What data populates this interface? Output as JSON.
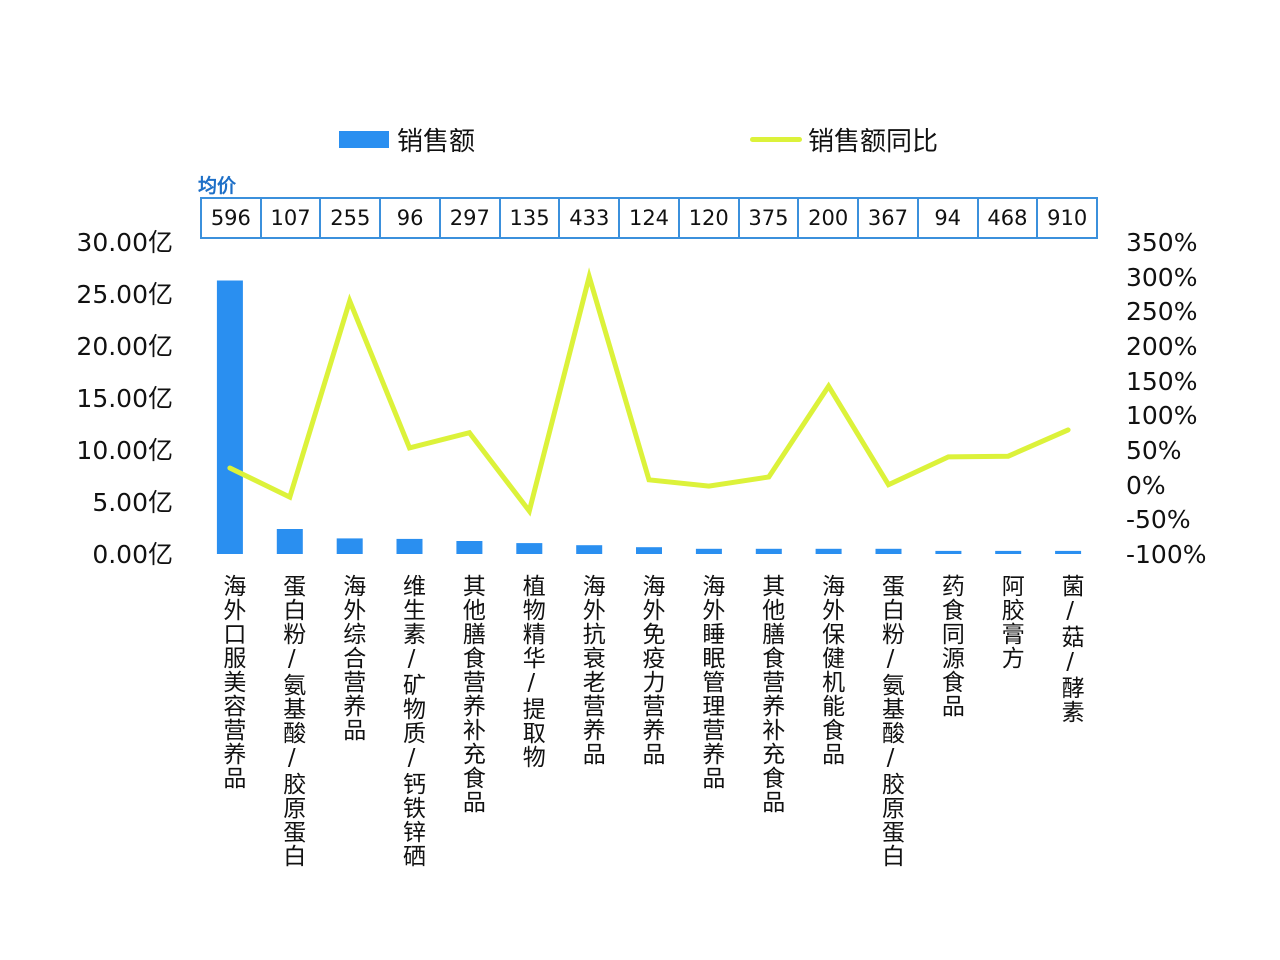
{
  "legend": {
    "bar_label": "销售额",
    "line_label": "销售额同比"
  },
  "avg_price": {
    "title": "均价",
    "values": [
      "596",
      "107",
      "255",
      "96",
      "297",
      "135",
      "433",
      "124",
      "120",
      "375",
      "200",
      "367",
      "94",
      "468",
      "910"
    ]
  },
  "colors": {
    "bar": "#2a8ff0",
    "line": "#dcf23a",
    "table_border": "#3b90dc",
    "table_title": "#1d6fc7"
  },
  "axes": {
    "left_ticks": [
      "30.00亿",
      "25.00亿",
      "20.00亿",
      "15.00亿",
      "10.00亿",
      "5.00亿",
      "0.00亿"
    ],
    "right_ticks": [
      "350%",
      "300%",
      "250%",
      "200%",
      "150%",
      "100%",
      "50%",
      "0%",
      "-50%",
      "-100%"
    ]
  },
  "chart_data": {
    "type": "bar+line",
    "title": "",
    "categories": [
      "海外口服美容营养品",
      "蛋白粉/氨基酸/胶原蛋白",
      "海外综合营养品",
      "维生素/矿物质/钙铁锌硒",
      "其他膳食营养补充食品",
      "植物精华/提取物",
      "海外抗衰老营养品",
      "海外免疫力营养品",
      "海外睡眠管理营养品",
      "其他膳食营养补充食品",
      "海外保健机能食品",
      "蛋白粉/氨基酸/胶原蛋白",
      "药食同源食品",
      "阿胶膏方",
      "菌/菇/酵素"
    ],
    "series": [
      {
        "name": "销售额",
        "type": "bar",
        "axis": "left",
        "unit": "亿",
        "values": [
          26.3,
          2.4,
          1.5,
          1.45,
          1.25,
          1.05,
          0.85,
          0.65,
          0.5,
          0.5,
          0.5,
          0.5,
          0.3,
          0.3,
          0.3
        ]
      },
      {
        "name": "销售额同比",
        "type": "line",
        "axis": "right",
        "unit": "%",
        "values": [
          24,
          -18,
          265,
          53,
          75,
          -38,
          300,
          7,
          -2,
          11,
          142,
          0,
          40,
          41,
          79
        ]
      }
    ],
    "table": {
      "label": "均价",
      "values": [
        596,
        107,
        255,
        96,
        297,
        135,
        433,
        124,
        120,
        375,
        200,
        367,
        94,
        468,
        910
      ]
    },
    "ylim_left": [
      0,
      30
    ],
    "ylim_right": [
      -100,
      350
    ],
    "ylabel_left": "",
    "ylabel_right": "",
    "xlabel": "",
    "grid": false,
    "legend_position": "top"
  }
}
